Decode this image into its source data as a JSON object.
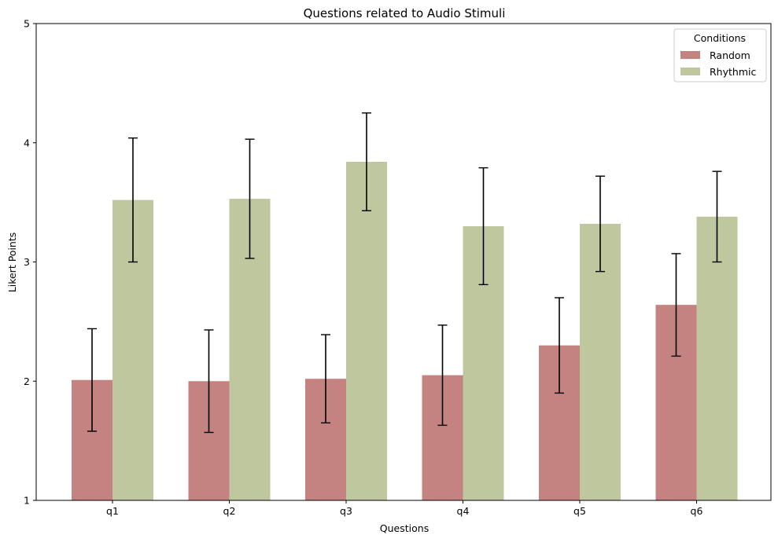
{
  "chart_data": {
    "type": "bar",
    "title": "Questions related to Audio Stimuli",
    "xlabel": "Questions",
    "ylabel": "Likert Points",
    "categories": [
      "q1",
      "q2",
      "q3",
      "q4",
      "q5",
      "q6"
    ],
    "ylim": [
      1,
      5
    ],
    "yticks": [
      "1",
      "2",
      "3",
      "4",
      "5"
    ],
    "legend": {
      "title": "Conditions",
      "placement": "top-right"
    },
    "grid": false,
    "series": [
      {
        "name": "Random",
        "color": "#c48280",
        "values": [
          2.01,
          2.0,
          2.02,
          2.05,
          2.3,
          2.64
        ],
        "errors": [
          0.43,
          0.43,
          0.37,
          0.42,
          0.4,
          0.43
        ]
      },
      {
        "name": "Rhythmic",
        "color": "#bfc79f",
        "values": [
          3.52,
          3.53,
          3.84,
          3.3,
          3.32,
          3.38
        ],
        "errors": [
          0.52,
          0.5,
          0.41,
          0.49,
          0.4,
          0.38
        ]
      }
    ]
  }
}
